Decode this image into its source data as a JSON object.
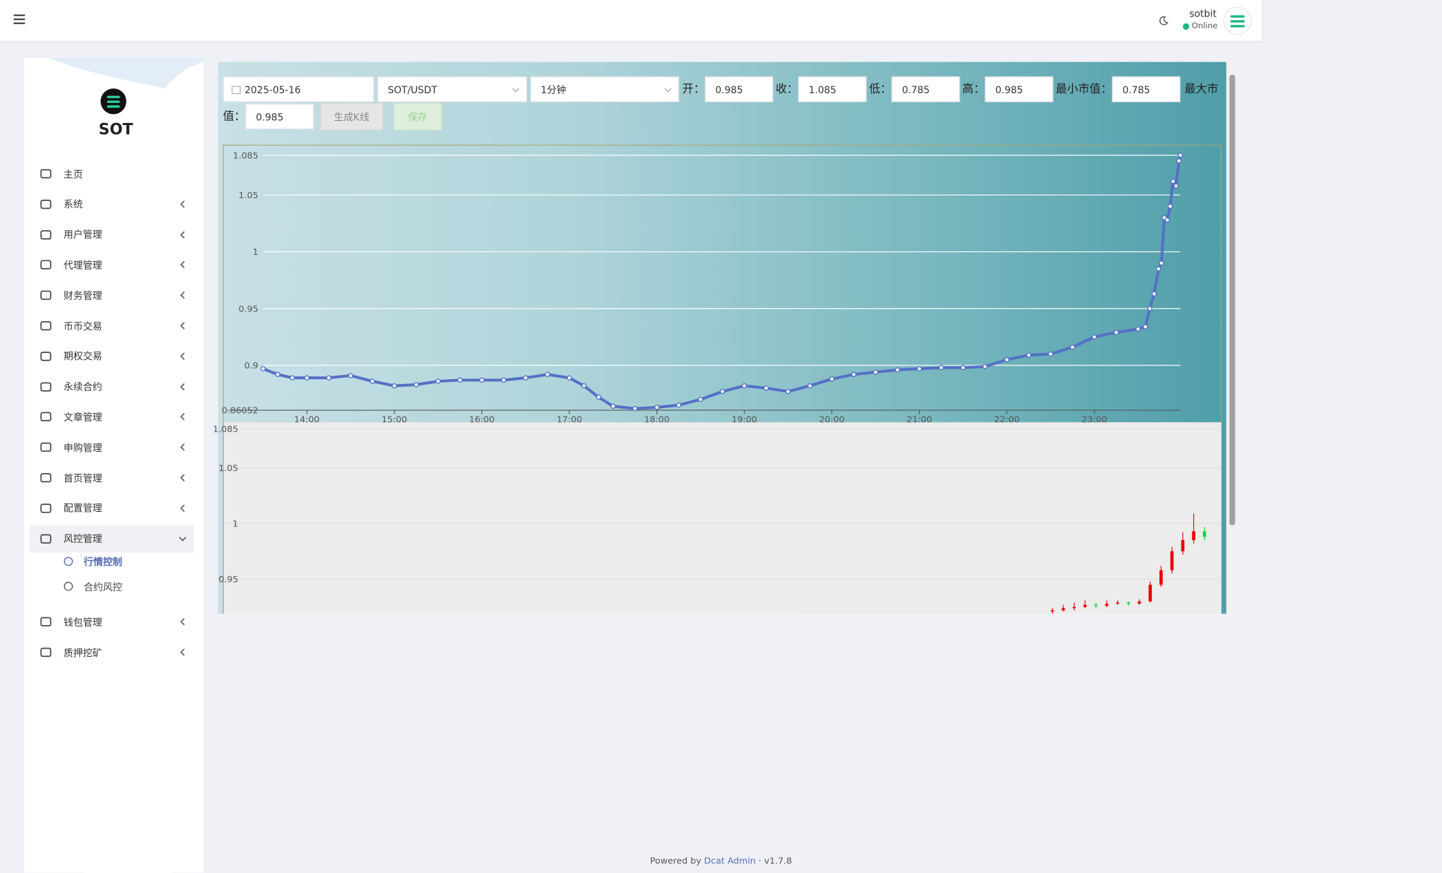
{
  "header": {
    "user": "sotbit",
    "status": "Online"
  },
  "sidebar": {
    "brand": "SOT",
    "menu": [
      {
        "label": "主页"
      },
      {
        "label": "系统"
      },
      {
        "label": "用户管理"
      },
      {
        "label": "代理管理"
      },
      {
        "label": "财务管理"
      },
      {
        "label": "币币交易"
      },
      {
        "label": "期权交易"
      },
      {
        "label": "永续合约"
      },
      {
        "label": "文章管理"
      },
      {
        "label": "申购管理"
      },
      {
        "label": "首页管理"
      },
      {
        "label": "配置管理"
      },
      {
        "label": "风控管理",
        "expanded": true,
        "children": [
          {
            "label": "行情控制",
            "active": true
          },
          {
            "label": "合约风控"
          }
        ]
      },
      {
        "label": "钱包管理"
      },
      {
        "label": "质押挖矿"
      }
    ]
  },
  "form": {
    "date": "2025-05-16",
    "pair": "SOT/USDT",
    "interval": "1分钟",
    "fields": [
      {
        "label": "开：",
        "value": "0.985"
      },
      {
        "label": "收：",
        "value": "1.085"
      },
      {
        "label": "低：",
        "value": "0.785"
      },
      {
        "label": "高：",
        "value": "0.985"
      },
      {
        "label": "最小市值：",
        "value": "0.785"
      },
      {
        "label": "最大市值：",
        "value": "0.985"
      }
    ],
    "buttons": [
      "生成K线",
      "保存"
    ]
  },
  "line_chart": {
    "type": "line",
    "color": "#5470c6",
    "x": [
      "13:30",
      "13:40",
      "13:50",
      "14:00",
      "14:15",
      "14:30",
      "14:45",
      "15:00",
      "15:15",
      "15:30",
      "15:45",
      "16:00",
      "16:15",
      "16:30",
      "16:45",
      "17:00",
      "17:10",
      "17:20",
      "17:30",
      "17:45",
      "18:00",
      "18:15",
      "18:30",
      "18:45",
      "19:00",
      "19:15",
      "19:30",
      "19:45",
      "20:00",
      "20:15",
      "20:30",
      "20:45",
      "21:00",
      "21:15",
      "21:30",
      "21:45",
      "22:00",
      "22:15",
      "22:30",
      "22:45",
      "23:00",
      "23:15",
      "23:30",
      "23:35",
      "23:38",
      "23:41",
      "23:44",
      "23:46",
      "23:48",
      "23:50",
      "23:52",
      "23:54",
      "23:56",
      "23:58",
      "23:59"
    ],
    "values": [
      0.897,
      0.892,
      0.889,
      0.889,
      0.889,
      0.891,
      0.886,
      0.882,
      0.883,
      0.886,
      0.887,
      0.887,
      0.887,
      0.889,
      0.892,
      0.889,
      0.882,
      0.872,
      0.864,
      0.862,
      0.863,
      0.865,
      0.87,
      0.877,
      0.882,
      0.88,
      0.877,
      0.882,
      0.888,
      0.892,
      0.894,
      0.896,
      0.897,
      0.898,
      0.898,
      0.899,
      0.905,
      0.909,
      0.91,
      0.916,
      0.925,
      0.929,
      0.932,
      0.934,
      0.95,
      0.963,
      0.985,
      0.99,
      1.03,
      1.028,
      1.04,
      1.062,
      1.058,
      1.08,
      1.085
    ],
    "xlim": [
      "13:30",
      "23:59"
    ],
    "xticks": [
      "14:00",
      "15:00",
      "16:00",
      "17:00",
      "18:00",
      "19:00",
      "20:00",
      "21:00",
      "22:00",
      "23:00"
    ],
    "ylim": [
      0.86052,
      1.085
    ],
    "yticks": [
      0.86052,
      0.9,
      0.95,
      1,
      1.05,
      1.085
    ],
    "grid": true
  },
  "candle_chart": {
    "type": "candlestick",
    "up_color": "#ec0000",
    "down_color": "#00da3c",
    "ylim": [
      0.919,
      1.085
    ],
    "yticks": [
      1.085,
      1.05,
      1,
      0.95
    ],
    "grid": true,
    "candles": [
      {
        "open": 0.921,
        "close": 0.922,
        "high": 0.924,
        "low": 0.919
      },
      {
        "open": 0.922,
        "close": 0.924,
        "high": 0.927,
        "low": 0.921
      },
      {
        "open": 0.924,
        "close": 0.925,
        "high": 0.929,
        "low": 0.922
      },
      {
        "open": 0.925,
        "close": 0.927,
        "high": 0.931,
        "low": 0.924
      },
      {
        "open": 0.927,
        "close": 0.926,
        "high": 0.929,
        "low": 0.924
      },
      {
        "open": 0.926,
        "close": 0.928,
        "high": 0.931,
        "low": 0.925
      },
      {
        "open": 0.928,
        "close": 0.929,
        "high": 0.931,
        "low": 0.927
      },
      {
        "open": 0.929,
        "close": 0.928,
        "high": 0.93,
        "low": 0.926
      },
      {
        "open": 0.928,
        "close": 0.93,
        "high": 0.932,
        "low": 0.927
      },
      {
        "open": 0.93,
        "close": 0.945,
        "high": 0.948,
        "low": 0.929
      },
      {
        "open": 0.945,
        "close": 0.958,
        "high": 0.962,
        "low": 0.943
      },
      {
        "open": 0.958,
        "close": 0.975,
        "high": 0.979,
        "low": 0.955
      },
      {
        "open": 0.975,
        "close": 0.985,
        "high": 0.992,
        "low": 0.972
      },
      {
        "open": 0.985,
        "close": 0.993,
        "high": 1.009,
        "low": 0.982
      },
      {
        "open": 0.993,
        "close": 0.988,
        "high": 0.997,
        "low": 0.985
      }
    ]
  },
  "footer": {
    "prefix": "Powered by",
    "link": "Dcat Admin",
    "version": "v1.7.8"
  }
}
